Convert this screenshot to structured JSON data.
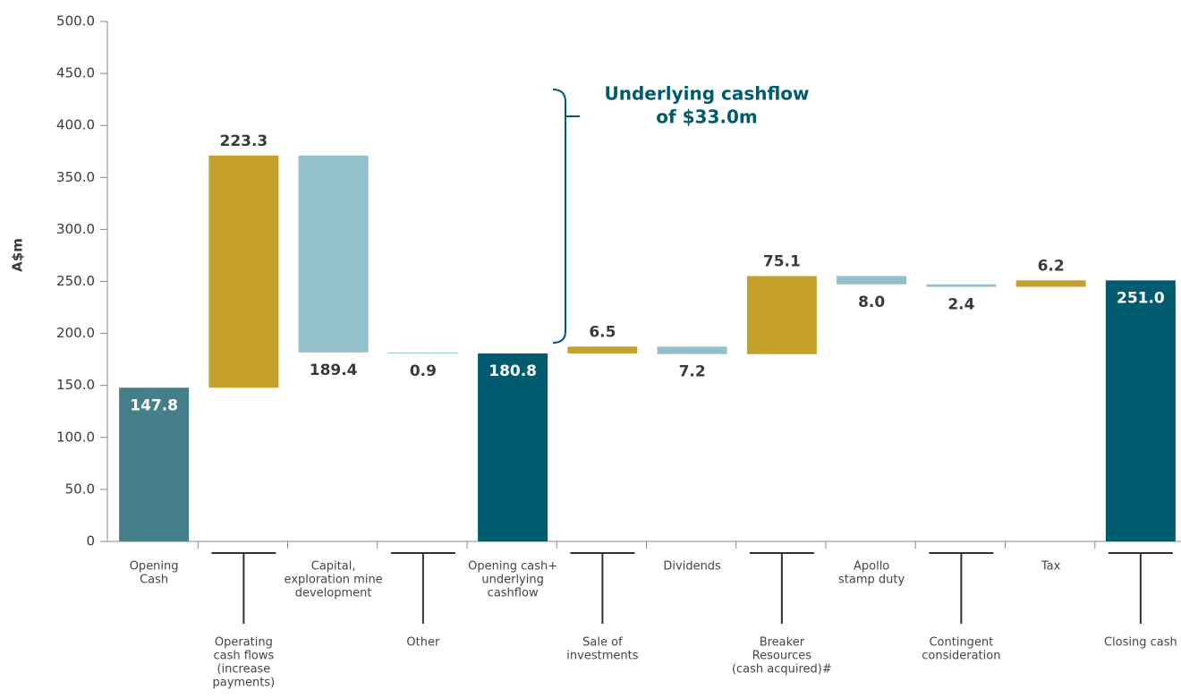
{
  "chart_data": {
    "type": "waterfall",
    "y_label": "A$m",
    "annotation": [
      "Underlying cashflow",
      "of $33.0m"
    ],
    "categories": [
      [
        "Opening",
        "Cash"
      ],
      [
        "Operating",
        "cash flows",
        "(increase",
        "payments)"
      ],
      [
        "Capital,",
        "exploration mine",
        "development"
      ],
      [
        "Other"
      ],
      [
        "Opening cash+",
        "underlying",
        "cashflow"
      ],
      [
        "Sale of",
        "investments"
      ],
      [
        "Dividends"
      ],
      [
        "Breaker",
        "Resources",
        "(cash acquired)#"
      ],
      [
        "Apollo",
        "stamp duty"
      ],
      [
        "Contingent",
        "consideration"
      ],
      [
        "Tax"
      ],
      [
        "Closing cash"
      ]
    ],
    "kinds": [
      "total",
      "increase",
      "decrease",
      "decrease",
      "total",
      "increase",
      "decrease",
      "increase",
      "decrease",
      "decrease",
      "increase",
      "total"
    ],
    "values": [
      147.8,
      223.3,
      189.4,
      0.9,
      180.8,
      6.5,
      7.2,
      75.1,
      8.0,
      2.4,
      6.2,
      251.0
    ],
    "value_labels": [
      "147.8",
      "223.3",
      "189.4",
      "0.9",
      "180.8",
      "6.5",
      "7.2",
      "75.1",
      "8.0",
      "2.4",
      "6.2",
      "251.0"
    ],
    "colors": {
      "first_total": "#457f8a",
      "total": "#005b6e",
      "increase": "#c5a02b",
      "decrease": "#93c0cb"
    },
    "ylim": [
      0,
      500
    ],
    "yticks": [
      0,
      {
        "value": 50,
        "label": "50.0"
      },
      {
        "value": 100,
        "label": "100.0"
      },
      {
        "value": 150,
        "label": "150.0"
      },
      {
        "value": 200,
        "label": "200.0"
      },
      {
        "value": 250,
        "label": "250.0"
      },
      {
        "value": 300,
        "label": "300.0"
      },
      {
        "value": 350,
        "label": "350.0"
      },
      {
        "value": 400,
        "label": "400.0"
      },
      {
        "value": 450,
        "label": "450.0"
      },
      {
        "value": 500,
        "label": "500.0"
      }
    ]
  }
}
